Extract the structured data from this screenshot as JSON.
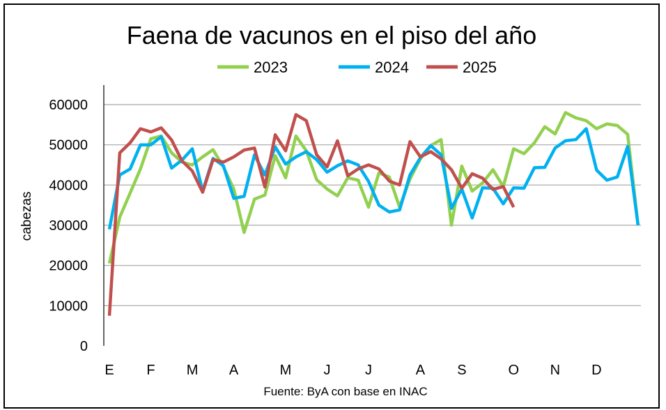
{
  "chart_data": {
    "type": "line",
    "title": "Faena de vacunos en el piso del año",
    "xlabel": "",
    "ylabel": "cabezas",
    "source": "Fuente: ByA con base en INAC",
    "ylim": [
      0,
      60000
    ],
    "yticks": [
      0,
      10000,
      20000,
      30000,
      40000,
      50000,
      60000
    ],
    "ytick_labels": [
      "0",
      "10000",
      "20000",
      "30000",
      "40000",
      "50000",
      "60000"
    ],
    "x_unit": "week",
    "month_labels": [
      {
        "label": "E",
        "week": 0
      },
      {
        "label": "F",
        "week": 4
      },
      {
        "label": "M",
        "week": 8
      },
      {
        "label": "A",
        "week": 12
      },
      {
        "label": "M",
        "week": 17
      },
      {
        "label": "J",
        "week": 21
      },
      {
        "label": "J",
        "week": 25
      },
      {
        "label": "A",
        "week": 30
      },
      {
        "label": "S",
        "week": 34
      },
      {
        "label": "O",
        "week": 39
      },
      {
        "label": "N",
        "week": 43
      },
      {
        "label": "D",
        "week": 47
      }
    ],
    "grid": true,
    "legend_position": "top",
    "series": [
      {
        "name": "2023",
        "color": "#92D050",
        "values": [
          20500,
          32000,
          38000,
          44000,
          51500,
          52200,
          48000,
          45700,
          45000,
          47000,
          48800,
          44500,
          39000,
          28200,
          36500,
          37500,
          47300,
          41800,
          52200,
          48500,
          41300,
          39000,
          37300,
          41800,
          41200,
          34500,
          43000,
          42000,
          34500,
          41500,
          46500,
          49800,
          51300,
          30000,
          44700,
          38500,
          40500,
          43800,
          39600,
          49000,
          47800,
          50500,
          54500,
          52700,
          58000,
          56700,
          56000,
          54000,
          55200,
          54800,
          52600,
          30000
        ]
      },
      {
        "name": "2024",
        "color": "#00B0F0",
        "values": [
          29000,
          42500,
          44000,
          50000,
          50000,
          52000,
          44200,
          46200,
          49000,
          38500,
          46600,
          44800,
          36700,
          37200,
          47500,
          42500,
          49500,
          45200,
          47000,
          48300,
          46300,
          43200,
          44800,
          46000,
          45000,
          40900,
          35000,
          33300,
          33800,
          42500,
          46800,
          49800,
          47500,
          34200,
          39000,
          31800,
          39300,
          39200,
          35300,
          39300,
          39200,
          44300,
          44400,
          49200,
          51000,
          51300,
          54000,
          43700,
          41200,
          42000,
          49600,
          30000
        ]
      },
      {
        "name": "2025",
        "color": "#C0504D",
        "values": [
          7500,
          48000,
          50500,
          54000,
          53200,
          54200,
          51200,
          46000,
          43500,
          38200,
          46300,
          45700,
          47000,
          48700,
          49200,
          39500,
          52500,
          48500,
          57500,
          56000,
          47500,
          44500,
          51000,
          42300,
          44000,
          45000,
          44000,
          41000,
          40000,
          50800,
          47000,
          48300,
          46500,
          43800,
          39200,
          42800,
          41700,
          38900,
          39600,
          34500
        ]
      }
    ]
  }
}
